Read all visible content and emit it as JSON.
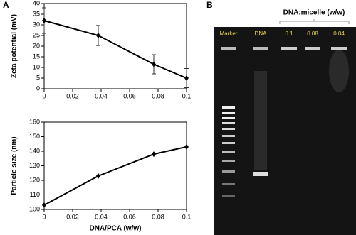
{
  "panel_labels": [
    "A",
    "B"
  ],
  "gel": {
    "title": "DNA:micelle (w/w)",
    "lanes": [
      "Marker",
      "DNA",
      "0.1",
      "0.08",
      "0.04"
    ]
  },
  "chart_data": [
    {
      "type": "line",
      "ylabel": "Zeta potential (mV)",
      "x": [
        0,
        0.038,
        0.077,
        0.1
      ],
      "values": [
        32,
        25,
        11.5,
        5
      ],
      "errors": [
        6,
        4.7,
        4.5,
        4.5
      ],
      "color": "#000000",
      "xlim": [
        0,
        0.1
      ],
      "xticks": [
        0,
        0.02,
        0.04,
        0.06,
        0.08,
        0.1
      ],
      "ylim": [
        0,
        40
      ],
      "yticks": [
        0,
        5,
        10,
        15,
        20,
        25,
        30,
        35,
        40
      ]
    },
    {
      "type": "line",
      "ylabel": "Particle size (nm)",
      "xlabel": "DNA/PCA (w/w)",
      "x": [
        0,
        0.038,
        0.077,
        0.1
      ],
      "values": [
        103,
        123,
        138,
        143
      ],
      "color": "#000000",
      "xlim": [
        0,
        0.1
      ],
      "xticks": [
        0,
        0.02,
        0.04,
        0.06,
        0.08,
        0.1
      ],
      "ylim": [
        100,
        160
      ],
      "yticks": [
        100,
        110,
        120,
        130,
        140,
        150,
        160
      ]
    }
  ]
}
